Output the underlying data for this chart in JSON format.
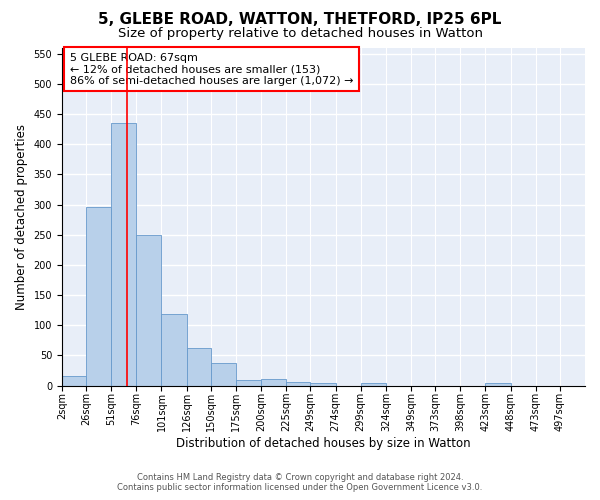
{
  "title_line1": "5, GLEBE ROAD, WATTON, THETFORD, IP25 6PL",
  "title_line2": "Size of property relative to detached houses in Watton",
  "xlabel": "Distribution of detached houses by size in Watton",
  "ylabel": "Number of detached properties",
  "bar_color": "#b8d0ea",
  "bar_edge_color": "#6699cc",
  "background_color": "#e8eef8",
  "annotation_box_text": "5 GLEBE ROAD: 67sqm\n← 12% of detached houses are smaller (153)\n86% of semi-detached houses are larger (1,072) →",
  "annotation_box_color": "white",
  "annotation_box_edge_color": "red",
  "vline_x": 67,
  "vline_color": "red",
  "footer_line1": "Contains HM Land Registry data © Crown copyright and database right 2024.",
  "footer_line2": "Contains public sector information licensed under the Open Government Licence v3.0.",
  "bin_edges": [
    2,
    26,
    51,
    76,
    101,
    126,
    150,
    175,
    200,
    225,
    249,
    274,
    299,
    324,
    349,
    373,
    398,
    423,
    448,
    473,
    497
  ],
  "bar_heights": [
    16,
    296,
    435,
    250,
    118,
    63,
    37,
    9,
    11,
    6,
    5,
    0,
    4,
    0,
    0,
    0,
    0,
    5,
    0,
    0
  ],
  "ylim": [
    0,
    560
  ],
  "yticks": [
    0,
    50,
    100,
    150,
    200,
    250,
    300,
    350,
    400,
    450,
    500,
    550
  ],
  "xlim": [
    2,
    522
  ],
  "grid_color": "#ffffff",
  "title_fontsize": 11,
  "subtitle_fontsize": 9.5,
  "axis_label_fontsize": 8.5,
  "tick_label_fontsize": 7
}
